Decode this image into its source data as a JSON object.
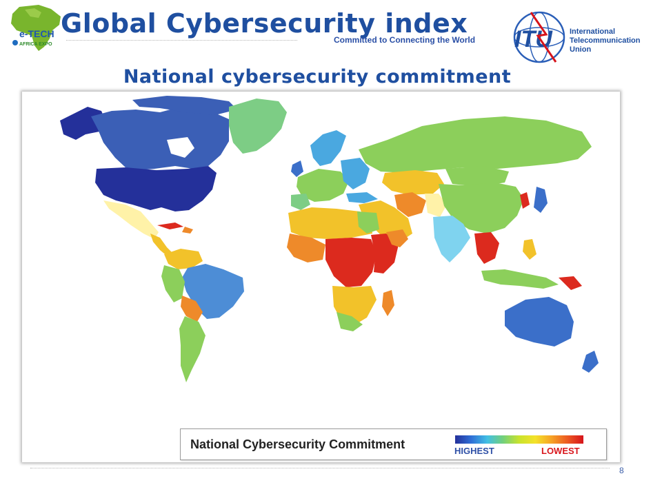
{
  "header": {
    "title": "Global Cybersecurity index",
    "tagline": "Committed to Connecting the World",
    "left_logo": {
      "text_top": "e-TECH",
      "text_bottom": "AFRICA EXPO"
    },
    "itu_logo": {
      "letters": "ITU",
      "name_lines": [
        "International",
        "Telecommunication",
        "Union"
      ]
    }
  },
  "subtitle": "National cybersecurity commitment",
  "map": {
    "legend": {
      "title": "National Cybersecurity Commitment",
      "high_label": "HIGHEST",
      "low_label": "LOWEST"
    },
    "colors": {
      "highest": "#24309a",
      "high": "#3b6fc9",
      "upper": "#4aa8e0",
      "middle": "#8ccf5b",
      "lower": "#f2c22a",
      "low": "#ee8a2a",
      "lowest": "#dc2a1e"
    }
  },
  "footer": {
    "page_number": "8"
  }
}
